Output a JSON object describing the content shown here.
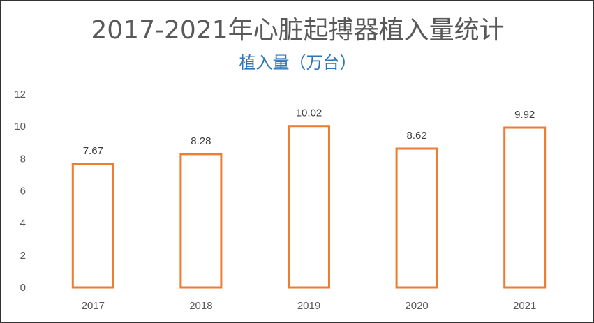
{
  "chart_data": {
    "type": "bar",
    "title": "2017-2021年心脏起搏器植入量统计",
    "subtitle": "植入量（万台）",
    "categories": [
      "2017",
      "2018",
      "2019",
      "2020",
      "2021"
    ],
    "values": [
      7.67,
      8.28,
      10.02,
      8.62,
      9.92
    ],
    "value_labels": [
      "7.67",
      "8.28",
      "10.02",
      "8.62",
      "9.92"
    ],
    "yticks": [
      "0",
      "2",
      "4",
      "6",
      "8",
      "10",
      "12"
    ],
    "ylim": [
      0,
      12
    ],
    "grid": false,
    "legend": "none",
    "colors": {
      "bar_outline": "#ed7d31",
      "bar_fill": "#ffffff",
      "title": "#595959",
      "subtitle": "#2e75b6",
      "tick": "#595959"
    }
  }
}
